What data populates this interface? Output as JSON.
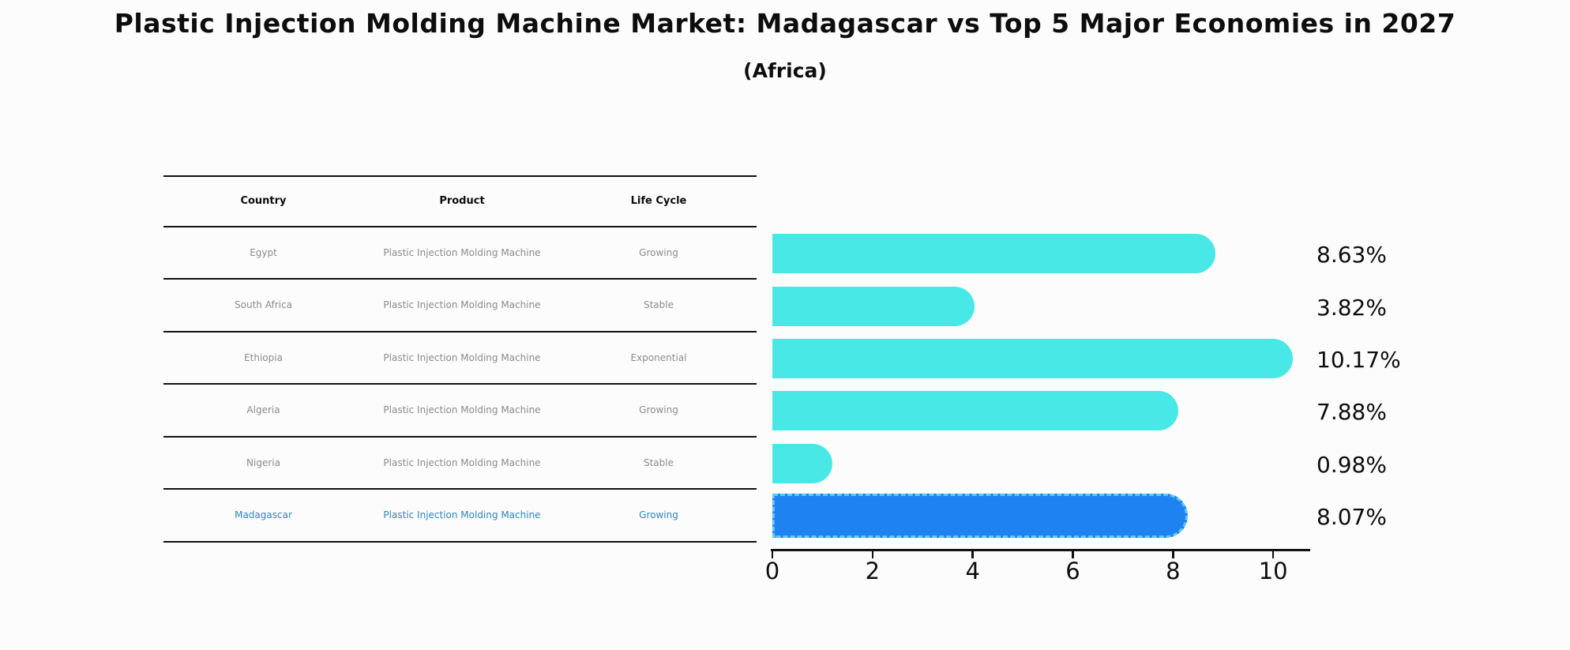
{
  "page": {
    "title": "Plastic Injection Molding Machine Market: Madagascar vs Top 5 Major Economies in 2027",
    "subtitle": "(Africa)"
  },
  "table": {
    "headers": [
      "Country",
      "Product",
      "Life Cycle"
    ],
    "rows": [
      {
        "country": "Egypt",
        "product": "Plastic Injection Molding Machine",
        "life_cycle": "Growing"
      },
      {
        "country": "South Africa",
        "product": "Plastic Injection Molding Machine",
        "life_cycle": "Stable"
      },
      {
        "country": "Ethiopia",
        "product": "Plastic Injection Molding Machine",
        "life_cycle": "Exponential"
      },
      {
        "country": "Algeria",
        "product": "Plastic Injection Molding Machine",
        "life_cycle": "Growing"
      },
      {
        "country": "Nigeria",
        "product": "Plastic Injection Molding Machine",
        "life_cycle": "Stable"
      },
      {
        "country": "Madagascar",
        "product": "Plastic Injection Molding Machine",
        "life_cycle": "Growing"
      }
    ]
  },
  "chart_data": {
    "type": "bar",
    "orientation": "horizontal",
    "title": "Plastic Injection Molding Machine Market: Madagascar vs Top 5 Major Economies in 2027 (Africa)",
    "categories": [
      "Egypt",
      "South Africa",
      "Ethiopia",
      "Algeria",
      "Nigeria",
      "Madagascar"
    ],
    "values": [
      8.63,
      3.82,
      10.17,
      7.88,
      0.98,
      8.07
    ],
    "value_labels": [
      "8.63%",
      "3.82%",
      "10.17%",
      "7.88%",
      "0.98%",
      "8.07%"
    ],
    "xlabel": "",
    "ylabel": "",
    "xlim": [
      0,
      10.72
    ],
    "xticks": [
      "0",
      "2",
      "4",
      "6",
      "8",
      "10"
    ],
    "grid": false,
    "legend": "none",
    "highlight_index": 5,
    "highlight_category": "Madagascar",
    "bar_color": "#48e8e6",
    "highlight_color": "#1e82f0"
  },
  "colors": {
    "background": "#fcfcfc",
    "bar_cyan": "#48e8e6",
    "bar_blue": "#1e82f0",
    "highlight_dash_border": "#62c6f2",
    "highlight_text": "#2e86c1",
    "row_text": "#8b8b8b",
    "line": "#111111"
  }
}
